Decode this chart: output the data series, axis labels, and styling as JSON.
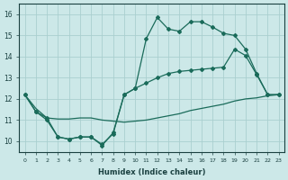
{
  "xlabel": "Humidex (Indice chaleur)",
  "xlim": [
    -0.5,
    23.5
  ],
  "ylim": [
    9.5,
    16.5
  ],
  "xticks": [
    0,
    1,
    2,
    3,
    4,
    5,
    6,
    7,
    8,
    9,
    10,
    11,
    12,
    13,
    14,
    15,
    16,
    17,
    18,
    19,
    20,
    21,
    22,
    23
  ],
  "yticks": [
    10,
    11,
    12,
    13,
    14,
    15,
    16
  ],
  "background_color": "#cce8e8",
  "grid_color": "#aacfcf",
  "line_color": "#1a6b5a",
  "line1_x": [
    0,
    1,
    2,
    3,
    4,
    5,
    6,
    7,
    8,
    9,
    10,
    11,
    12,
    13,
    14,
    15,
    16,
    17,
    18,
    19,
    20,
    21,
    22,
    23
  ],
  "line1_y": [
    12.2,
    11.4,
    11.0,
    10.2,
    10.1,
    10.2,
    10.2,
    9.8,
    10.4,
    12.2,
    12.5,
    14.85,
    15.85,
    15.3,
    15.2,
    15.65,
    15.65,
    15.4,
    15.1,
    15.0,
    14.35,
    13.2,
    12.2,
    12.2
  ],
  "line2_x": [
    0,
    1,
    2,
    3,
    4,
    5,
    6,
    7,
    8,
    9,
    10,
    11,
    12,
    13,
    14,
    15,
    16,
    17,
    18,
    19,
    20,
    21,
    22,
    23
  ],
  "line2_y": [
    12.2,
    11.4,
    11.1,
    10.2,
    10.1,
    10.2,
    10.2,
    9.85,
    10.35,
    12.2,
    12.5,
    12.75,
    13.0,
    13.2,
    13.3,
    13.35,
    13.4,
    13.45,
    13.5,
    14.35,
    14.05,
    13.15,
    12.2,
    12.2
  ],
  "line3_x": [
    0,
    23
  ],
  "line3_y": [
    12.2,
    12.2
  ],
  "line3_mid_x": [
    0,
    1,
    2,
    3,
    4,
    5,
    6,
    7,
    8,
    9,
    10,
    11,
    12,
    13,
    14,
    15,
    16,
    17,
    18,
    19,
    20,
    21,
    22,
    23
  ],
  "line3_mid_y": [
    12.2,
    11.55,
    11.1,
    11.05,
    11.05,
    11.1,
    11.1,
    11.0,
    10.95,
    10.9,
    10.95,
    11.0,
    11.1,
    11.2,
    11.3,
    11.45,
    11.55,
    11.65,
    11.75,
    11.9,
    12.0,
    12.05,
    12.15,
    12.2
  ]
}
